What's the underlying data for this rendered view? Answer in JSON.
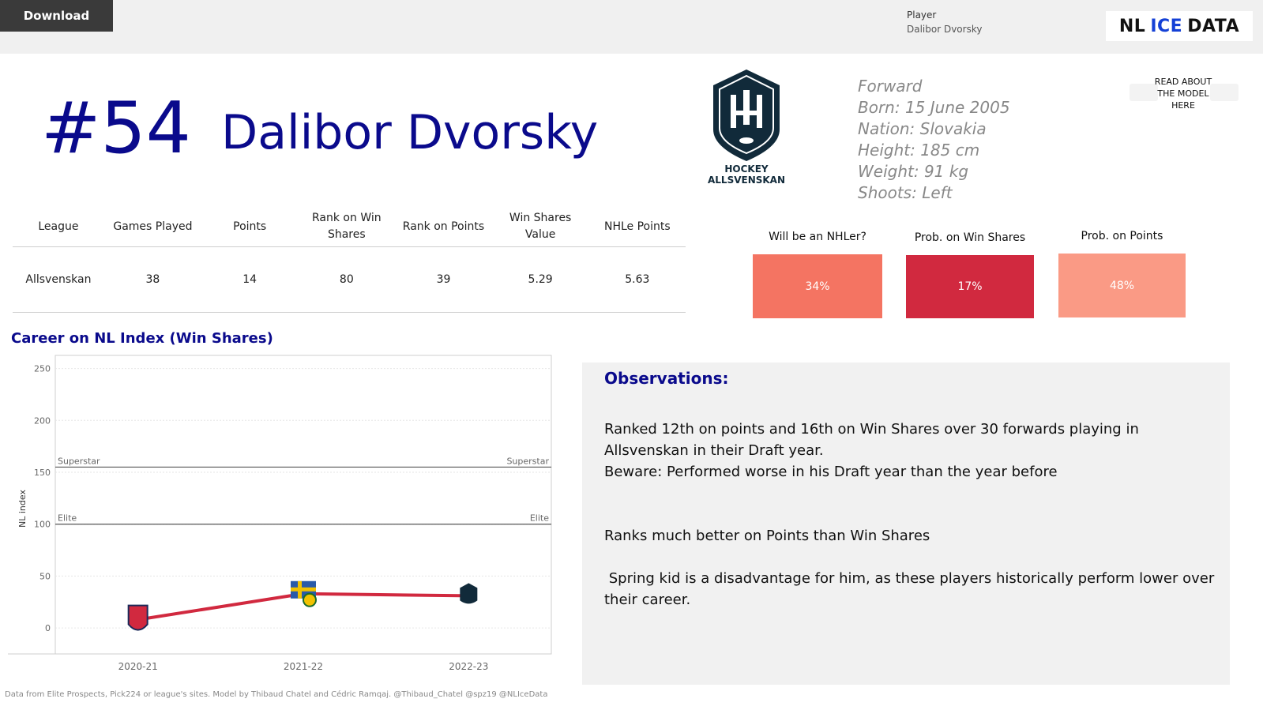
{
  "topbar": {
    "download_label": "Download",
    "player_label": "Player",
    "player_value": "Dalibor Dvorsky",
    "brand_nl": "NL",
    "brand_ice": "ICE",
    "brand_data": "DATA"
  },
  "header": {
    "number": "#54",
    "name": "Dalibor Dvorsky",
    "logo_line1": "HOCKEY",
    "logo_line2": "ALLSVENSKAN"
  },
  "bio": {
    "position": "Forward",
    "born": "Born: 15 June 2005",
    "nation": "Nation: Slovakia",
    "height": "Height: 185 cm",
    "weight": "Weight: 91 kg",
    "shoots": "Shoots: Left"
  },
  "model_link": {
    "line1": "READ ABOUT",
    "line2": "THE MODEL",
    "line3": "HERE"
  },
  "stats_table": {
    "headers": [
      "League",
      "Games Played",
      "Points",
      "Rank on Win Shares",
      "Rank on Points",
      "Win Shares Value",
      "NHLe Points"
    ],
    "row": [
      "Allsvenskan",
      "38",
      "14",
      "80",
      "39",
      "5.29",
      "5.63"
    ]
  },
  "probabilities": [
    {
      "label": "Will be an NHLer?",
      "value": "34%",
      "color": "#f47462"
    },
    {
      "label": "Prob. on Win Shares",
      "value": "17%",
      "color": "#d1293f"
    },
    {
      "label": "Prob. on Points",
      "value": "48%",
      "color": "#fa9a85"
    }
  ],
  "chart_data": {
    "type": "line",
    "title": "Career on NL Index (Win Shares)",
    "ylabel": "NL index",
    "x": [
      "2020-21",
      "2021-22",
      "2022-23"
    ],
    "series": [
      {
        "values": [
          8,
          33,
          31
        ]
      }
    ],
    "ylim": [
      -25,
      255
    ],
    "yticks": [
      0,
      50,
      100,
      150,
      200,
      250
    ],
    "reference_lines": [
      {
        "label": "Superstar",
        "value": 155
      },
      {
        "label": "Elite",
        "value": 100
      }
    ],
    "grid": true,
    "line_color": "#d1293f"
  },
  "observations": {
    "title": "Observations:",
    "p1_line1": "Ranked 12th on points and 16th on Win Shares over 30 forwards playing in",
    "p1_line2": "Allsvenskan in their Draft year.",
    "p1_line3": "Beware: Performed worse in his Draft year than the year before",
    "p2": "Ranks much better on Points than Win Shares",
    "p3_line1": " Spring kid is a disadvantage for him, as these players historically perform lower over",
    "p3_line2": "their career."
  },
  "footer": "Data from Elite Prospects, Pick224 or league's sites. Model by Thibaud Chatel and Cédric Ramqaj. @Thibaud_Chatel @spz19 @NLIceData"
}
